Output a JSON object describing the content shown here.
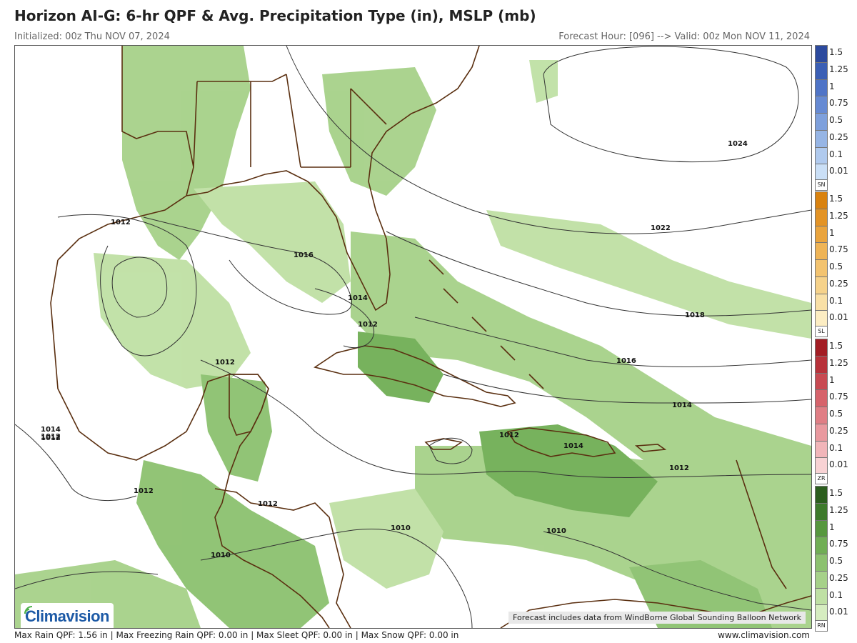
{
  "header": {
    "title": "Horizon AI-G: 6-hr QPF & Avg. Precipitation Type (in), MSLP (mb)",
    "initialized": "Initialized: 00z Thu NOV 07, 2024",
    "forecast_valid": "Forecast Hour: [096] --> Valid: 00z Mon NOV 11, 2024"
  },
  "footer": {
    "stats": "Max Rain QPF: 1.56 in | Max Freezing Rain QPF: 0.00 in | Max Sleet QPF: 0.00 in | Max Snow QPF: 0.00 in",
    "website": "www.climavision.com"
  },
  "map": {
    "credit": "Forecast includes data from WindBorne Global Sounding Balloon Network",
    "logo_text": "Climavision",
    "isobars": [
      "1024",
      "1022",
      "1018",
      "1016",
      "1016",
      "1014",
      "1014",
      "1012",
      "1012",
      "1012",
      "1012",
      "1012",
      "1012",
      "1012",
      "1012",
      "1014",
      "1014",
      "1012",
      "1010",
      "1010",
      "1010"
    ]
  },
  "legend": {
    "levels": [
      "1.5",
      "1.25",
      "1",
      "0.75",
      "0.5",
      "0.25",
      "0.1",
      "0.01"
    ],
    "bars": [
      {
        "tag": "SN",
        "colors": [
          "#2c4a9e",
          "#3b5fb5",
          "#4f74c7",
          "#668ad3",
          "#7ea0dc",
          "#96b5e5",
          "#b0caee",
          "#cadff6"
        ]
      },
      {
        "tag": "SL",
        "colors": [
          "#d9820f",
          "#e39325",
          "#eaa43d",
          "#efb456",
          "#f3c36f",
          "#f6d28a",
          "#f9e0a6",
          "#fcedc3"
        ]
      },
      {
        "tag": "ZR",
        "colors": [
          "#a31d24",
          "#b8323a",
          "#c84a52",
          "#d6636b",
          "#e07e85",
          "#e9999f",
          "#f1b5b9",
          "#f8d2d4"
        ]
      },
      {
        "tag": "RN",
        "colors": [
          "#2c5e1e",
          "#3e7a2c",
          "#56973e",
          "#70ae55",
          "#8cc16f",
          "#a6d189",
          "#bfe0a4",
          "#d6edc0"
        ]
      }
    ]
  }
}
